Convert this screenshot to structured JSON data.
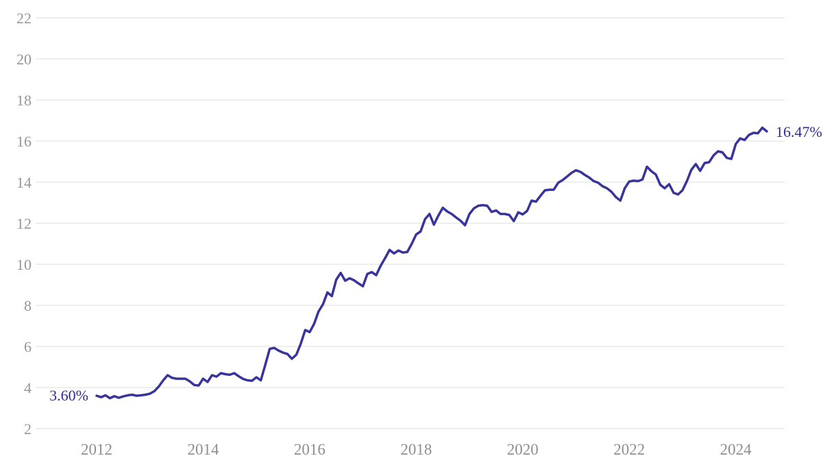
{
  "chart_data": {
    "type": "line",
    "title": "",
    "xlabel": "",
    "ylabel": "",
    "grid": "horizontal",
    "legend": "none",
    "colors": {
      "line": "#39349b",
      "value_label": "#302e92",
      "gridline": "#e9e9e9",
      "tick_label": "#979797",
      "background": "#ffffff"
    },
    "y_axis": {
      "ticks": [
        2,
        4,
        6,
        8,
        10,
        12,
        14,
        16,
        18,
        20,
        22
      ],
      "range": [
        2,
        22
      ]
    },
    "x_axis": {
      "tick_labels": [
        "2012",
        "2014",
        "2016",
        "2018",
        "2020",
        "2022",
        "2024"
      ],
      "tick_month_positions": [
        0,
        24,
        48,
        72,
        96,
        120,
        144
      ]
    },
    "series": [
      {
        "name": "percent",
        "frequency": "monthly",
        "start": "2012-01",
        "end": "2024-08",
        "values": [
          3.6,
          3.53,
          3.62,
          3.48,
          3.58,
          3.5,
          3.57,
          3.62,
          3.65,
          3.6,
          3.62,
          3.65,
          3.7,
          3.82,
          4.05,
          4.35,
          4.6,
          4.47,
          4.43,
          4.43,
          4.43,
          4.3,
          4.12,
          4.1,
          4.43,
          4.27,
          4.6,
          4.53,
          4.7,
          4.65,
          4.62,
          4.7,
          4.55,
          4.42,
          4.35,
          4.33,
          4.5,
          4.35,
          5.1,
          5.88,
          5.93,
          5.8,
          5.7,
          5.63,
          5.4,
          5.6,
          6.13,
          6.8,
          6.7,
          7.1,
          7.7,
          8.05,
          8.63,
          8.45,
          9.25,
          9.58,
          9.2,
          9.32,
          9.22,
          9.07,
          8.93,
          9.53,
          9.62,
          9.47,
          9.93,
          10.3,
          10.7,
          10.53,
          10.67,
          10.57,
          10.6,
          11.0,
          11.45,
          11.6,
          12.2,
          12.45,
          11.93,
          12.37,
          12.75,
          12.57,
          12.45,
          12.28,
          12.12,
          11.9,
          12.45,
          12.72,
          12.85,
          12.88,
          12.85,
          12.55,
          12.62,
          12.45,
          12.45,
          12.4,
          12.1,
          12.53,
          12.43,
          12.6,
          13.1,
          13.05,
          13.33,
          13.6,
          13.63,
          13.63,
          13.97,
          14.1,
          14.27,
          14.45,
          14.58,
          14.5,
          14.35,
          14.22,
          14.05,
          13.97,
          13.8,
          13.7,
          13.53,
          13.27,
          13.1,
          13.7,
          14.03,
          14.07,
          14.05,
          14.13,
          14.75,
          14.53,
          14.37,
          13.87,
          13.7,
          13.9,
          13.48,
          13.4,
          13.6,
          14.05,
          14.6,
          14.88,
          14.55,
          14.93,
          14.97,
          15.3,
          15.5,
          15.45,
          15.18,
          15.13,
          15.85,
          16.13,
          16.05,
          16.3,
          16.4,
          16.38,
          16.65,
          16.47
        ]
      }
    ],
    "annotations": [
      {
        "text": "3.60%",
        "position": "start"
      },
      {
        "text": "16.47%",
        "position": "end"
      }
    ]
  }
}
